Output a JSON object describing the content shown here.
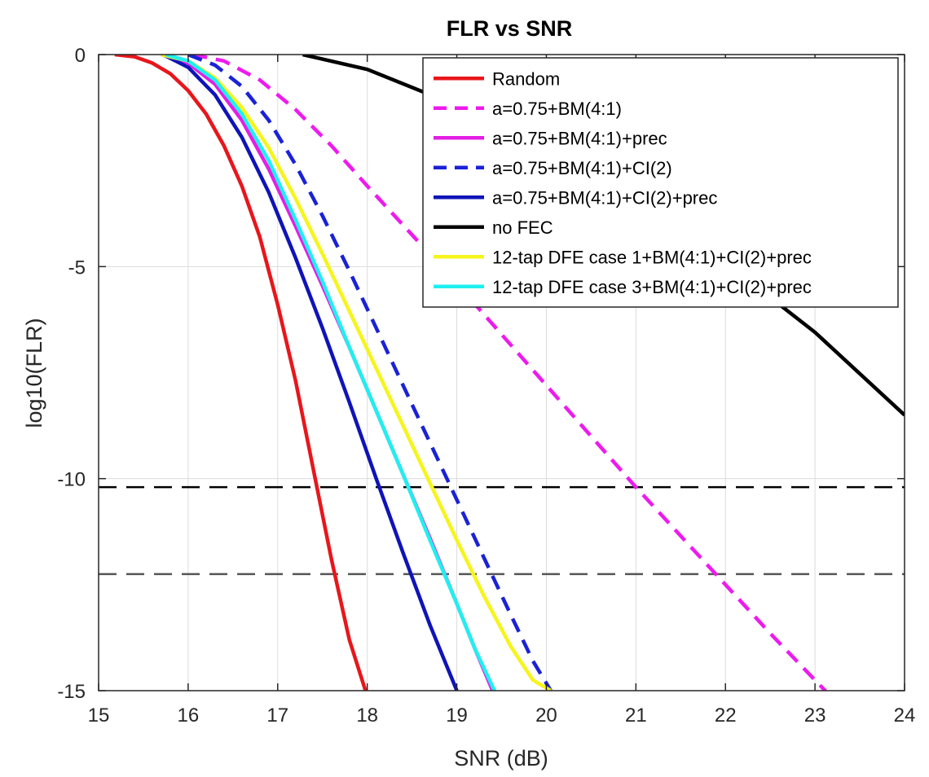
{
  "chart_data": {
    "type": "line",
    "title": "FLR vs SNR",
    "xlabel": "SNR (dB)",
    "ylabel": "log10(FLR)",
    "xlim": [
      15,
      24
    ],
    "ylim": [
      -15,
      0
    ],
    "xticks": [
      15,
      16,
      17,
      18,
      19,
      20,
      21,
      22,
      23,
      24
    ],
    "yticks": [
      0,
      -5,
      -10,
      -15
    ],
    "xtick_labels": [
      "15",
      "16",
      "17",
      "18",
      "19",
      "20",
      "21",
      "22",
      "23",
      "24"
    ],
    "ytick_labels": [
      "0",
      "-5",
      "-10",
      "-15"
    ],
    "grid": true,
    "legend_position": "top-right",
    "series": [
      {
        "name": "Random",
        "color": "#e8161b",
        "dash": "solid",
        "x": [
          15.18,
          15.4,
          15.6,
          15.8,
          16.0,
          16.2,
          16.4,
          16.6,
          16.8,
          17.0,
          17.2,
          17.4,
          17.6,
          17.8,
          17.98
        ],
        "y": [
          0,
          -0.05,
          -0.2,
          -0.45,
          -0.85,
          -1.4,
          -2.15,
          -3.1,
          -4.3,
          -5.9,
          -7.7,
          -9.8,
          -11.9,
          -13.8,
          -15
        ]
      },
      {
        "name": "a=0.75+BM(4:1)",
        "color": "#ee1aee",
        "dash": "dash",
        "x": [
          16.05,
          16.4,
          16.8,
          17.2,
          17.6,
          18.0,
          18.5,
          19.0,
          19.5,
          20.0,
          20.5,
          21.0,
          21.5,
          22.0,
          22.5,
          23.0,
          23.5,
          23.7
        ],
        "y": [
          0,
          -0.15,
          -0.6,
          -1.3,
          -2.15,
          -3.1,
          -4.25,
          -5.4,
          -6.6,
          -7.8,
          -9.0,
          -10.2,
          -11.35,
          -12.5,
          -13.65,
          -14.75,
          -15.85,
          -16.3
        ]
      },
      {
        "name": "a=0.75+BM(4:1)+prec",
        "color": "#e41ee4",
        "dash": "solid",
        "x": [
          15.7,
          16.0,
          16.3,
          16.6,
          16.9,
          17.2,
          17.5,
          17.8,
          18.1,
          18.4,
          18.7,
          19.0,
          19.2,
          19.4
        ],
        "y": [
          0,
          -0.2,
          -0.7,
          -1.55,
          -2.7,
          -4.05,
          -5.45,
          -6.9,
          -8.4,
          -9.9,
          -11.4,
          -12.95,
          -14.0,
          -15
        ]
      },
      {
        "name": "a=0.75+BM(4:1)+CI(2)",
        "color": "#1a22d6",
        "dash": "dash",
        "x": [
          16.0,
          16.3,
          16.6,
          16.9,
          17.2,
          17.5,
          17.8,
          18.1,
          18.4,
          18.7,
          19.0,
          19.3,
          19.6,
          19.85,
          20.05
        ],
        "y": [
          0,
          -0.25,
          -0.75,
          -1.55,
          -2.6,
          -3.8,
          -5.1,
          -6.45,
          -7.8,
          -9.15,
          -10.5,
          -11.85,
          -13.2,
          -14.3,
          -15
        ]
      },
      {
        "name": "a=0.75+BM(4:1)+CI(2)+prec",
        "color": "#0f14b8",
        "dash": "solid",
        "x": [
          15.72,
          16.0,
          16.3,
          16.6,
          16.9,
          17.2,
          17.5,
          17.8,
          18.1,
          18.4,
          18.7,
          19.0
        ],
        "y": [
          0,
          -0.3,
          -0.95,
          -1.95,
          -3.25,
          -4.8,
          -6.45,
          -8.2,
          -10.0,
          -11.75,
          -13.45,
          -15
        ]
      },
      {
        "name": "no FEC",
        "color": "#000000",
        "dash": "solid",
        "x": [
          17.28,
          18.0,
          19.0,
          20.0,
          21.0,
          22.0,
          23.0,
          24.0
        ],
        "y": [
          0,
          -0.35,
          -1.2,
          -2.25,
          -3.45,
          -4.9,
          -6.55,
          -8.5
        ]
      },
      {
        "name": "12-tap DFE case 1+BM(4:1)+CI(2)+prec",
        "color": "#f5f51c",
        "dash": "solid",
        "x": [
          15.7,
          16.0,
          16.3,
          16.6,
          16.9,
          17.2,
          17.5,
          17.8,
          18.1,
          18.4,
          18.7,
          19.0,
          19.3,
          19.6,
          19.85,
          20.05
        ],
        "y": [
          0,
          -0.15,
          -0.55,
          -1.25,
          -2.2,
          -3.4,
          -4.7,
          -6.05,
          -7.4,
          -8.75,
          -10.1,
          -11.45,
          -12.75,
          -13.95,
          -14.75,
          -15
        ]
      },
      {
        "name": "12-tap DFE case 3+BM(4:1)+CI(2)+prec",
        "color": "#1ef0f0",
        "dash": "solid",
        "x": [
          15.75,
          16.0,
          16.3,
          16.6,
          16.9,
          17.2,
          17.5,
          17.8,
          18.1,
          18.4,
          18.7,
          19.0,
          19.2,
          19.42
        ],
        "y": [
          0,
          -0.15,
          -0.6,
          -1.4,
          -2.5,
          -3.9,
          -5.35,
          -6.9,
          -8.4,
          -9.9,
          -11.45,
          -12.95,
          -14.0,
          -15
        ]
      }
    ],
    "reference_lines": [
      {
        "y": -10.2,
        "color": "#000000",
        "dash": "dash"
      },
      {
        "y": -12.25,
        "color": "#555555",
        "dash": "dash"
      }
    ]
  }
}
